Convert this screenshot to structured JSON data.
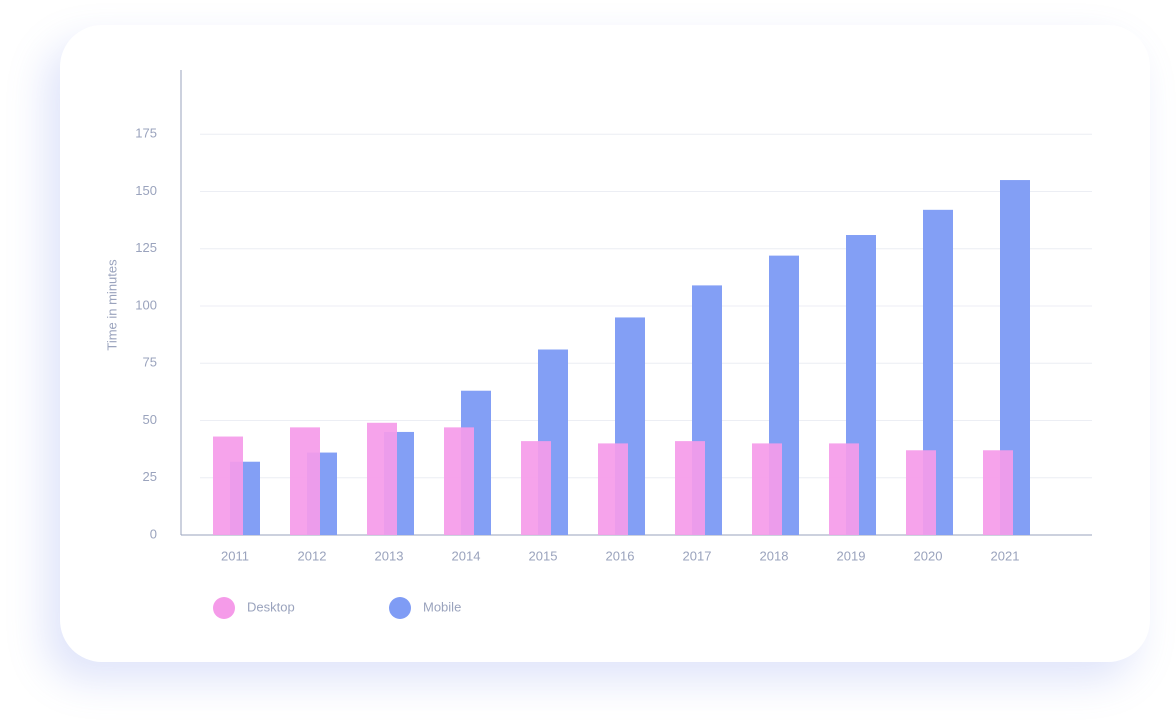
{
  "chart_data": {
    "type": "bar",
    "y_label": "Time in minutes",
    "categories": [
      "2011",
      "2012",
      "2013",
      "2014",
      "2015",
      "2016",
      "2017",
      "2018",
      "2019",
      "2020",
      "2021"
    ],
    "series": [
      {
        "name": "Desktop",
        "color": "#f59be9",
        "values": [
          43,
          47,
          49,
          47,
          41,
          40,
          41,
          40,
          40,
          37,
          37
        ]
      },
      {
        "name": "Mobile",
        "color": "#7f9cf5",
        "values": [
          32,
          36,
          45,
          63,
          81,
          95,
          109,
          122,
          131,
          142,
          155
        ]
      }
    ],
    "ylim": [
      0,
      200
    ],
    "yticks": [
      0,
      25,
      50,
      75,
      100,
      125,
      150,
      175
    ],
    "grid": true,
    "legend": "bottom-left"
  }
}
